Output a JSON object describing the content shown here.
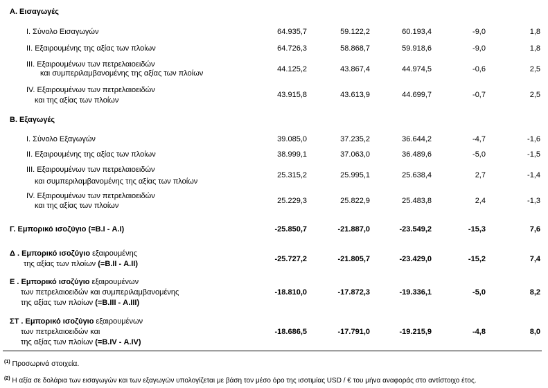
{
  "sections": {
    "imports_title": "Α. Εισαγωγές",
    "exports_title": "Β. Εξαγωγές"
  },
  "imports": [
    {
      "l1": "I.   Σύνολο Εισαγωγών",
      "l2": "",
      "v": [
        "64.935,7",
        "59.122,2",
        "60.193,4",
        "-9,0",
        "1,8"
      ]
    },
    {
      "l1": "II.  Εξαιρουμένης  της αξίας των πλοίων",
      "l2": "",
      "v": [
        "64.726,3",
        "58.868,7",
        "59.918,6",
        "-9,0",
        "1,8"
      ]
    },
    {
      "l1": "III. Εξαιρουμένων των πετρελαιοειδών",
      "l2": "και συμπεριλαμβανομένης της αξίας των πλοίων",
      "v": [
        "44.125,2",
        "43.867,4",
        "44.974,5",
        "-0,6",
        "2,5"
      ]
    },
    {
      "l1": "IV. Εξαιρουμένων των πετρελαιοειδών",
      "l2": "και της αξίας των πλοίων",
      "v": [
        "43.915,8",
        "43.613,9",
        "44.699,7",
        "-0,7",
        "2,5"
      ]
    }
  ],
  "exports": [
    {
      "l1": "I.   Σύνολο Εξαγωγών",
      "l2": "",
      "v": [
        "39.085,0",
        "37.235,2",
        "36.644,2",
        "-4,7",
        "-1,6"
      ]
    },
    {
      "l1": "II.  Εξαιρουμένης της αξίας των πλοίων",
      "l2": "",
      "v": [
        "38.999,1",
        "37.063,0",
        "36.489,6",
        "-5,0",
        "-1,5"
      ]
    },
    {
      "l1": "III. Εξαιρουμένων των πετρελαιοειδών",
      "l2": "και  συμπεριλαμβανομένης της αξίας των πλοίων",
      "v": [
        "25.315,2",
        "25.995,1",
        "25.638,4",
        "2,7",
        "-1,4"
      ]
    },
    {
      "l1": "IV. Εξαιρουμένων των πετρελαιοειδών",
      "l2": "και  της αξίας των πλοίων",
      "v": [
        "25.229,3",
        "25.822,9",
        "25.483,8",
        "2,4",
        "-1,3"
      ]
    }
  ],
  "balance_g": {
    "label": "Γ. Εμπορικό ισοζύγιο (=Β.I - Α.I)",
    "v": [
      "-25.850,7",
      "-21.887,0",
      "-23.549,2",
      "-15,3",
      "7,6"
    ]
  },
  "balance_d": {
    "bold": "Δ . Εμπορικό ισοζύγιο",
    "rest": " εξαιρουμένης",
    "l2": "της αξίας των πλοίων",
    "l2b": " (=Β.II - Α.II)",
    "v": [
      "-25.727,2",
      "-21.805,7",
      "-23.429,0",
      "-15,2",
      "7,4"
    ]
  },
  "balance_e": {
    "bold": "Ε . Εμπορικό ισοζύγιο",
    "rest": " εξαιρουμένων",
    "l2": "των πετρελαιοειδών και συμπεριλαμβανομένης",
    "l3": "της αξίας των πλοίων",
    "l3b": " (=Β.III - Α.III)",
    "v": [
      "-18.810,0",
      "-17.872,3",
      "-19.336,1",
      "-5,0",
      "8,2"
    ]
  },
  "balance_st": {
    "bold": "ΣΤ . Εμπορικό ισοζύγιο",
    "rest": " εξαιρουμένων",
    "l2": "των πετρελαιοειδών και",
    "l3": "της αξίας των πλοίων",
    "l3b": " (=Β.IV - Α.IV)",
    "v": [
      "-18.686,5",
      "-17.791,0",
      "-19.215,9",
      "-4,8",
      "8,0"
    ]
  },
  "footnotes": [
    {
      "mark": "(1)",
      "text": " Προσωρινά στοιχεία."
    },
    {
      "mark": "(2)",
      "text": " Η αξία σε δολάρια των εισαγωγών και των εξαγωγών υπολογίζεται με βάση τον μέσο όρο της ισοτιμίας USD / € του μήνα αναφοράς στο αντίστοιχο έτος."
    }
  ]
}
